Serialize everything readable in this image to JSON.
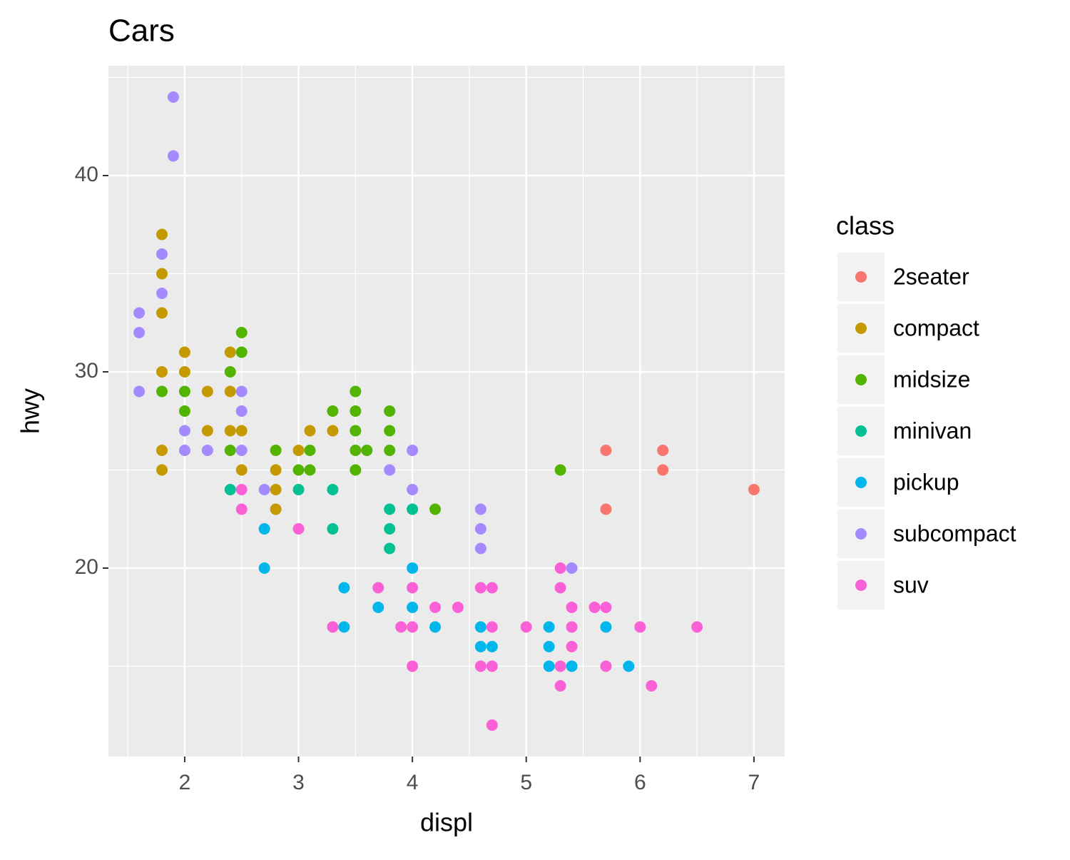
{
  "chart_data": {
    "type": "scatter",
    "title": "Cars",
    "x_label": "displ",
    "y_label": "hwy",
    "legend_title": "class",
    "legend_position": "right",
    "grid": true,
    "xlim": [
      1.33,
      7.27
    ],
    "ylim": [
      10.4,
      45.6
    ],
    "xticks": [
      2,
      3,
      4,
      5,
      6,
      7
    ],
    "yticks": [
      20,
      30,
      40
    ],
    "series": [
      {
        "name": "2seater",
        "color": "#F8766D",
        "x": [
          5.7,
          5.7,
          6.2,
          6.2,
          7.0
        ],
        "values": [
          26,
          23,
          26,
          25,
          24
        ]
      },
      {
        "name": "compact",
        "color": "#C49A00",
        "x": [
          1.8,
          1.8,
          1.8,
          1.8,
          1.8,
          1.8,
          2.0,
          2.0,
          2.2,
          2.2,
          2.4,
          2.4,
          2.4,
          2.5,
          2.5,
          2.8,
          2.8,
          2.8,
          3.0,
          3.1,
          3.3
        ],
        "values": [
          37,
          35,
          33,
          30,
          26,
          25,
          31,
          30,
          29,
          27,
          31,
          29,
          27,
          27,
          25,
          25,
          24,
          23,
          26,
          27,
          27
        ]
      },
      {
        "name": "midsize",
        "color": "#53B400",
        "x": [
          1.8,
          2.0,
          2.0,
          2.4,
          2.4,
          2.5,
          2.5,
          2.8,
          3.0,
          3.1,
          3.1,
          3.3,
          3.5,
          3.5,
          3.5,
          3.5,
          3.5,
          3.6,
          3.8,
          3.8,
          3.8,
          4.2,
          5.3
        ],
        "values": [
          29,
          29,
          28,
          30,
          26,
          32,
          31,
          26,
          25,
          26,
          25,
          28,
          29,
          28,
          27,
          26,
          25,
          26,
          28,
          27,
          26,
          23,
          25
        ]
      },
      {
        "name": "minivan",
        "color": "#00C094",
        "x": [
          2.4,
          3.0,
          3.3,
          3.3,
          3.8,
          3.8,
          3.8,
          4.0
        ],
        "values": [
          24,
          24,
          24,
          22,
          23,
          22,
          21,
          23
        ]
      },
      {
        "name": "pickup",
        "color": "#00B6EB",
        "x": [
          2.7,
          2.7,
          3.4,
          3.4,
          3.7,
          4.0,
          4.0,
          4.2,
          4.6,
          4.6,
          4.7,
          5.2,
          5.2,
          5.2,
          5.4,
          5.7,
          5.9
        ],
        "values": [
          22,
          20,
          19,
          17,
          18,
          20,
          18,
          17,
          17,
          16,
          16,
          17,
          16,
          15,
          15,
          17,
          15
        ]
      },
      {
        "name": "subcompact",
        "color": "#A58AFF",
        "x": [
          1.6,
          1.6,
          1.6,
          1.8,
          1.8,
          1.9,
          1.9,
          2.0,
          2.0,
          2.2,
          2.5,
          2.5,
          2.5,
          2.7,
          3.8,
          4.0,
          4.0,
          4.6,
          4.6,
          4.6,
          5.4
        ],
        "values": [
          33,
          32,
          29,
          36,
          34,
          44,
          41,
          27,
          26,
          26,
          29,
          28,
          26,
          24,
          25,
          26,
          24,
          23,
          22,
          21,
          20
        ]
      },
      {
        "name": "suv",
        "color": "#FB61D7",
        "x": [
          2.5,
          2.5,
          3.0,
          3.3,
          3.7,
          3.9,
          4.0,
          4.0,
          4.0,
          4.2,
          4.4,
          4.6,
          4.6,
          4.7,
          4.7,
          4.7,
          4.7,
          5.0,
          5.3,
          5.3,
          5.3,
          5.3,
          5.4,
          5.4,
          5.4,
          5.6,
          5.7,
          5.7,
          6.0,
          6.1,
          6.5
        ],
        "values": [
          24,
          23,
          22,
          17,
          19,
          17,
          19,
          17,
          15,
          18,
          18,
          19,
          15,
          19,
          17,
          15,
          12,
          17,
          20,
          19,
          15,
          14,
          18,
          17,
          16,
          18,
          18,
          15,
          17,
          14,
          17
        ]
      }
    ]
  }
}
